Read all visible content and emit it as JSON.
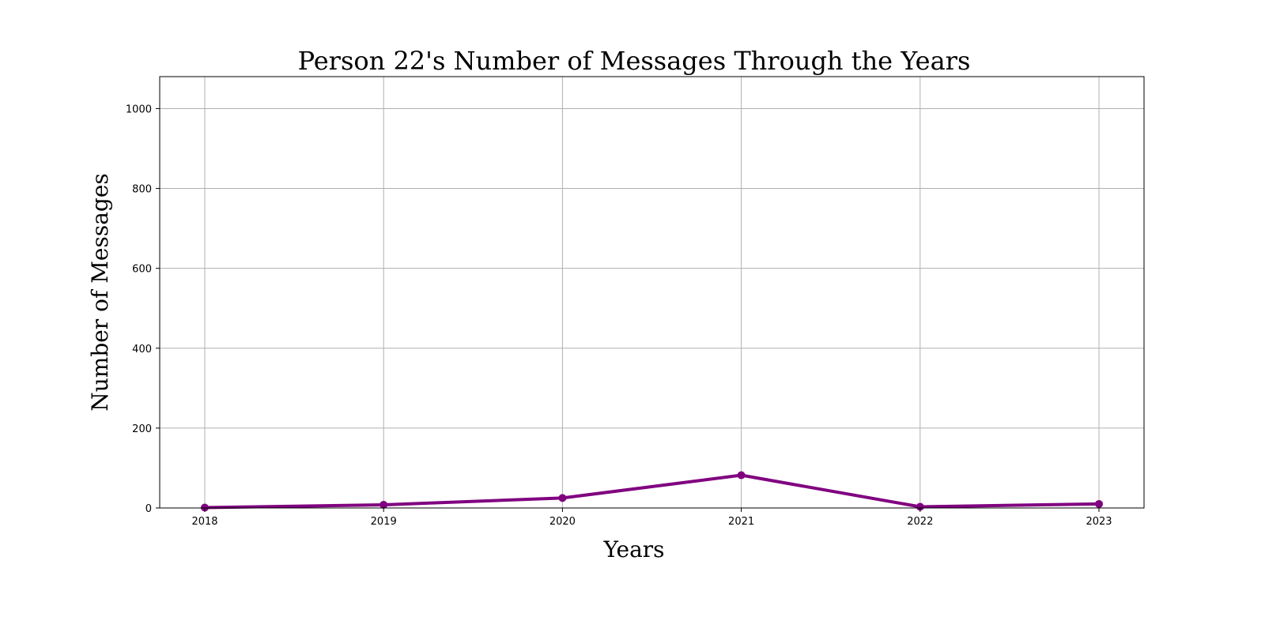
{
  "chart_data": {
    "type": "line",
    "title": "Person 22's Number of Messages Through the Years",
    "xlabel": "Years",
    "ylabel": "Number of Messages",
    "x": [
      "2018",
      "2019",
      "2020",
      "2021",
      "2022",
      "2023"
    ],
    "series": [
      {
        "values": [
          1,
          8,
          25,
          82,
          3,
          10
        ],
        "color": "#800080",
        "marker": "circle"
      }
    ],
    "ylim": [
      0,
      1080
    ],
    "yticks": [
      0,
      200,
      400,
      600,
      800,
      1000
    ],
    "grid": true,
    "legend": false
  }
}
